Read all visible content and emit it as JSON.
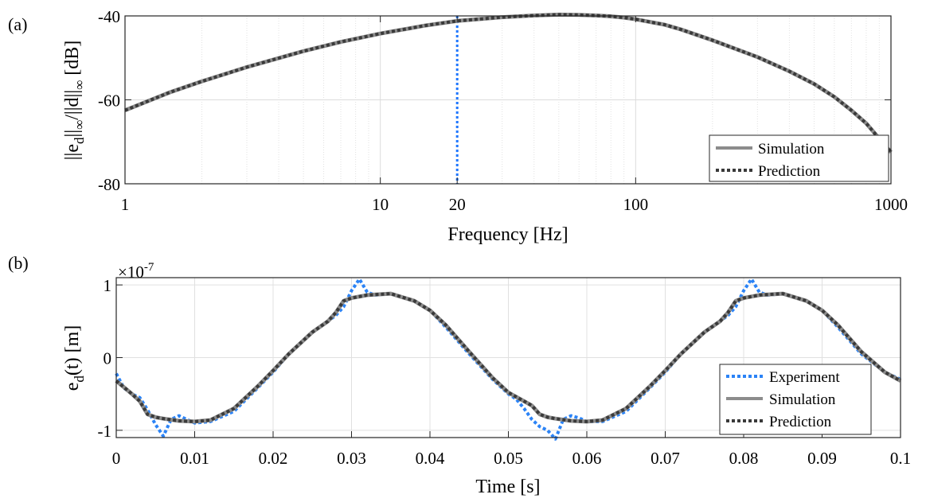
{
  "chart_data": [
    {
      "panel_label": "(a)",
      "type": "line",
      "xscale": "log",
      "xlabel": "Frequency [Hz]",
      "ylabel": "||e_d||_∞/||d||_∞ [dB]",
      "ylabel_parts": {
        "p1": "||e",
        "sub1": "d",
        "p2": "||",
        "sub2": "∞",
        "p3": "/||d||",
        "sub3": "∞",
        "p4": " [dB]"
      },
      "xlim": [
        1,
        1000
      ],
      "ylim": [
        -80,
        -40
      ],
      "xticks": [
        1,
        10,
        20,
        100,
        1000
      ],
      "xtick_labels": [
        "1",
        "10",
        "20",
        "100",
        "1000"
      ],
      "yticks": [
        -80,
        -60,
        -40
      ],
      "ytick_labels": [
        "-80",
        "-60",
        "-40"
      ],
      "grid": true,
      "marker_line": {
        "x": 20,
        "color": "#1f77ff",
        "style": "dotted"
      },
      "legend_position": "bottom-right",
      "series": [
        {
          "name": "Simulation",
          "color": "#8c8c8c",
          "style": "solid",
          "x": [
            1,
            1.5,
            2,
            3,
            5,
            7,
            10,
            15,
            20,
            30,
            40,
            50,
            60,
            70,
            80,
            90,
            100,
            130,
            150,
            200,
            300,
            400,
            500,
            600,
            700,
            800,
            1000
          ],
          "y": [
            -62.5,
            -58.2,
            -55.6,
            -52.2,
            -48.4,
            -46.2,
            -44.2,
            -42.3,
            -41.2,
            -40.3,
            -39.9,
            -39.7,
            -39.75,
            -39.9,
            -40.1,
            -40.4,
            -40.8,
            -42.1,
            -43.2,
            -45.8,
            -49.8,
            -53.2,
            -56.2,
            -59.3,
            -62.5,
            -65.6,
            -72.5
          ]
        },
        {
          "name": "Prediction",
          "color": "#3a3a3a",
          "style": "dotted",
          "x": [
            1,
            1.5,
            2,
            3,
            5,
            7,
            10,
            15,
            20,
            30,
            40,
            50,
            60,
            70,
            80,
            90,
            100,
            130,
            150,
            200,
            300,
            400,
            500,
            600,
            700,
            800,
            1000
          ],
          "y": [
            -62.5,
            -58.2,
            -55.6,
            -52.2,
            -48.4,
            -46.2,
            -44.2,
            -42.3,
            -41.2,
            -40.3,
            -39.9,
            -39.7,
            -39.75,
            -39.9,
            -40.1,
            -40.4,
            -40.8,
            -42.1,
            -43.2,
            -45.8,
            -49.8,
            -53.2,
            -56.2,
            -59.3,
            -62.5,
            -65.6,
            -72.5
          ]
        }
      ]
    },
    {
      "panel_label": "(b)",
      "type": "line",
      "xlabel": "Time [s]",
      "ylabel": "e_d(t) [m]",
      "ylabel_parts": {
        "p1": "e",
        "sub1": "d",
        "p2": "(t) [m]"
      },
      "multiplier": {
        "base": "×10",
        "exp": "-7"
      },
      "xlim": [
        0,
        0.1
      ],
      "ylim": [
        -1.1,
        1.1
      ],
      "xticks": [
        0,
        0.01,
        0.02,
        0.03,
        0.04,
        0.05,
        0.06,
        0.07,
        0.08,
        0.09,
        0.1
      ],
      "xtick_labels": [
        "0",
        "0.01",
        "0.02",
        "0.03",
        "0.04",
        "0.05",
        "0.06",
        "0.07",
        "0.08",
        "0.09",
        "0.1"
      ],
      "yticks": [
        -1,
        0,
        1
      ],
      "ytick_labels": [
        "-1",
        "0",
        "1"
      ],
      "grid": true,
      "legend_position": "bottom-right",
      "series": [
        {
          "name": "Experiment",
          "color": "#2b83f6",
          "style": "dotted",
          "x": [
            0,
            0.001,
            0.002,
            0.003,
            0.004,
            0.005,
            0.006,
            0.007,
            0.008,
            0.009,
            0.01,
            0.012,
            0.015,
            0.018,
            0.02,
            0.022,
            0.025,
            0.028,
            0.029,
            0.03,
            0.031,
            0.032,
            0.033,
            0.035,
            0.038,
            0.04,
            0.042,
            0.045,
            0.048,
            0.05,
            0.051,
            0.052,
            0.053,
            0.054,
            0.055,
            0.056,
            0.057,
            0.058,
            0.059,
            0.06,
            0.062,
            0.065,
            0.068,
            0.07,
            0.072,
            0.075,
            0.078,
            0.079,
            0.08,
            0.081,
            0.082,
            0.083,
            0.085,
            0.088,
            0.09,
            0.092,
            0.095,
            0.098,
            0.1
          ],
          "y": [
            -0.22,
            -0.42,
            -0.5,
            -0.55,
            -0.72,
            -0.92,
            -1.08,
            -0.85,
            -0.8,
            -0.85,
            -0.9,
            -0.88,
            -0.74,
            -0.42,
            -0.2,
            0.05,
            0.35,
            0.58,
            0.7,
            0.92,
            1.08,
            0.9,
            0.86,
            0.88,
            0.78,
            0.65,
            0.42,
            0.05,
            -0.3,
            -0.5,
            -0.57,
            -0.7,
            -0.85,
            -0.95,
            -1.0,
            -1.12,
            -0.85,
            -0.8,
            -0.83,
            -0.88,
            -0.88,
            -0.74,
            -0.42,
            -0.2,
            0.05,
            0.35,
            0.58,
            0.7,
            0.92,
            1.08,
            0.9,
            0.86,
            0.88,
            0.78,
            0.65,
            0.42,
            0.05,
            -0.2,
            -0.3
          ]
        },
        {
          "name": "Simulation",
          "color": "#8c8c8c",
          "style": "solid",
          "x": [
            0,
            0.002,
            0.003,
            0.004,
            0.005,
            0.006,
            0.008,
            0.01,
            0.012,
            0.015,
            0.018,
            0.02,
            0.022,
            0.025,
            0.027,
            0.028,
            0.029,
            0.03,
            0.032,
            0.035,
            0.038,
            0.04,
            0.042,
            0.045,
            0.048,
            0.05,
            0.052,
            0.053,
            0.054,
            0.055,
            0.056,
            0.058,
            0.06,
            0.062,
            0.065,
            0.068,
            0.07,
            0.072,
            0.075,
            0.077,
            0.078,
            0.079,
            0.08,
            0.082,
            0.085,
            0.088,
            0.09,
            0.092,
            0.095,
            0.098,
            0.1
          ],
          "y": [
            -0.32,
            -0.5,
            -0.6,
            -0.78,
            -0.82,
            -0.84,
            -0.87,
            -0.88,
            -0.86,
            -0.7,
            -0.4,
            -0.18,
            0.05,
            0.35,
            0.5,
            0.62,
            0.78,
            0.82,
            0.86,
            0.88,
            0.78,
            0.65,
            0.45,
            0.08,
            -0.28,
            -0.48,
            -0.6,
            -0.66,
            -0.78,
            -0.82,
            -0.84,
            -0.87,
            -0.88,
            -0.86,
            -0.7,
            -0.4,
            -0.18,
            0.05,
            0.35,
            0.5,
            0.62,
            0.78,
            0.82,
            0.86,
            0.88,
            0.78,
            0.65,
            0.45,
            0.08,
            -0.2,
            -0.32
          ]
        },
        {
          "name": "Prediction",
          "color": "#3a3a3a",
          "style": "dotted",
          "x": [
            0,
            0.002,
            0.003,
            0.004,
            0.005,
            0.006,
            0.008,
            0.01,
            0.012,
            0.015,
            0.018,
            0.02,
            0.022,
            0.025,
            0.027,
            0.028,
            0.029,
            0.03,
            0.032,
            0.035,
            0.038,
            0.04,
            0.042,
            0.045,
            0.048,
            0.05,
            0.052,
            0.053,
            0.054,
            0.055,
            0.056,
            0.058,
            0.06,
            0.062,
            0.065,
            0.068,
            0.07,
            0.072,
            0.075,
            0.077,
            0.078,
            0.079,
            0.08,
            0.082,
            0.085,
            0.088,
            0.09,
            0.092,
            0.095,
            0.098,
            0.1
          ],
          "y": [
            -0.32,
            -0.5,
            -0.6,
            -0.78,
            -0.82,
            -0.84,
            -0.87,
            -0.88,
            -0.86,
            -0.7,
            -0.4,
            -0.18,
            0.05,
            0.35,
            0.5,
            0.62,
            0.78,
            0.82,
            0.86,
            0.88,
            0.78,
            0.65,
            0.45,
            0.08,
            -0.28,
            -0.48,
            -0.6,
            -0.66,
            -0.78,
            -0.82,
            -0.84,
            -0.87,
            -0.88,
            -0.86,
            -0.7,
            -0.4,
            -0.18,
            0.05,
            0.35,
            0.5,
            0.62,
            0.78,
            0.82,
            0.86,
            0.88,
            0.78,
            0.65,
            0.45,
            0.08,
            -0.2,
            -0.32
          ]
        }
      ]
    }
  ]
}
